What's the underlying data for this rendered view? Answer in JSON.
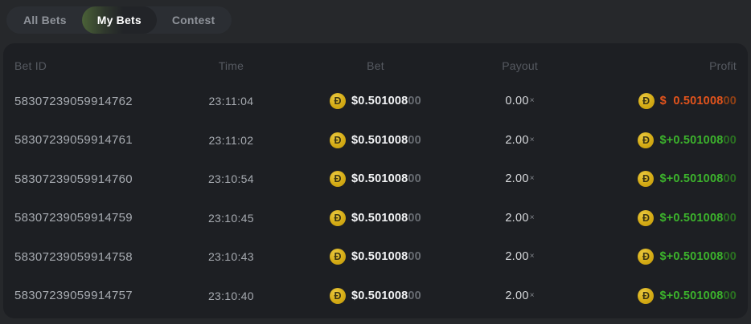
{
  "tabs": [
    {
      "label": "All Bets",
      "active": false
    },
    {
      "label": "My Bets",
      "active": true
    },
    {
      "label": "Contest",
      "active": false
    }
  ],
  "table": {
    "headers": [
      "Bet ID",
      "Time",
      "Bet",
      "Payout",
      "Profit"
    ],
    "coin_glyph": "Đ",
    "rows": [
      {
        "bet_id": "58307239059914762",
        "time": "23:11:04",
        "bet_main": "$0.501008",
        "bet_dim": "00",
        "payout": "0.00",
        "payout_mult": "×",
        "profit_prefix": "$  ",
        "profit_main": "0.501008",
        "profit_dim": "00",
        "profit_state": "loss"
      },
      {
        "bet_id": "58307239059914761",
        "time": "23:11:02",
        "bet_main": "$0.501008",
        "bet_dim": "00",
        "payout": "2.00",
        "payout_mult": "×",
        "profit_prefix": "$+",
        "profit_main": "0.501008",
        "profit_dim": "00",
        "profit_state": "win"
      },
      {
        "bet_id": "58307239059914760",
        "time": "23:10:54",
        "bet_main": "$0.501008",
        "bet_dim": "00",
        "payout": "2.00",
        "payout_mult": "×",
        "profit_prefix": "$+",
        "profit_main": "0.501008",
        "profit_dim": "00",
        "profit_state": "win"
      },
      {
        "bet_id": "58307239059914759",
        "time": "23:10:45",
        "bet_main": "$0.501008",
        "bet_dim": "00",
        "payout": "2.00",
        "payout_mult": "×",
        "profit_prefix": "$+",
        "profit_main": "0.501008",
        "profit_dim": "00",
        "profit_state": "win"
      },
      {
        "bet_id": "58307239059914758",
        "time": "23:10:43",
        "bet_main": "$0.501008",
        "bet_dim": "00",
        "payout": "2.00",
        "payout_mult": "×",
        "profit_prefix": "$+",
        "profit_main": "0.501008",
        "profit_dim": "00",
        "profit_state": "win"
      },
      {
        "bet_id": "58307239059914757",
        "time": "23:10:40",
        "bet_main": "$0.501008",
        "bet_dim": "00",
        "payout": "2.00",
        "payout_mult": "×",
        "profit_prefix": "$+",
        "profit_main": "0.501008",
        "profit_dim": "00",
        "profit_state": "win"
      }
    ]
  },
  "colors": {
    "page_bg": "#26282b",
    "panel_bg": "#1d1f23",
    "coin_gold": "#d4ab15",
    "profit_win": "#3cb32c",
    "profit_loss": "#e4541c",
    "tab_active_glow": "#6c9444"
  }
}
